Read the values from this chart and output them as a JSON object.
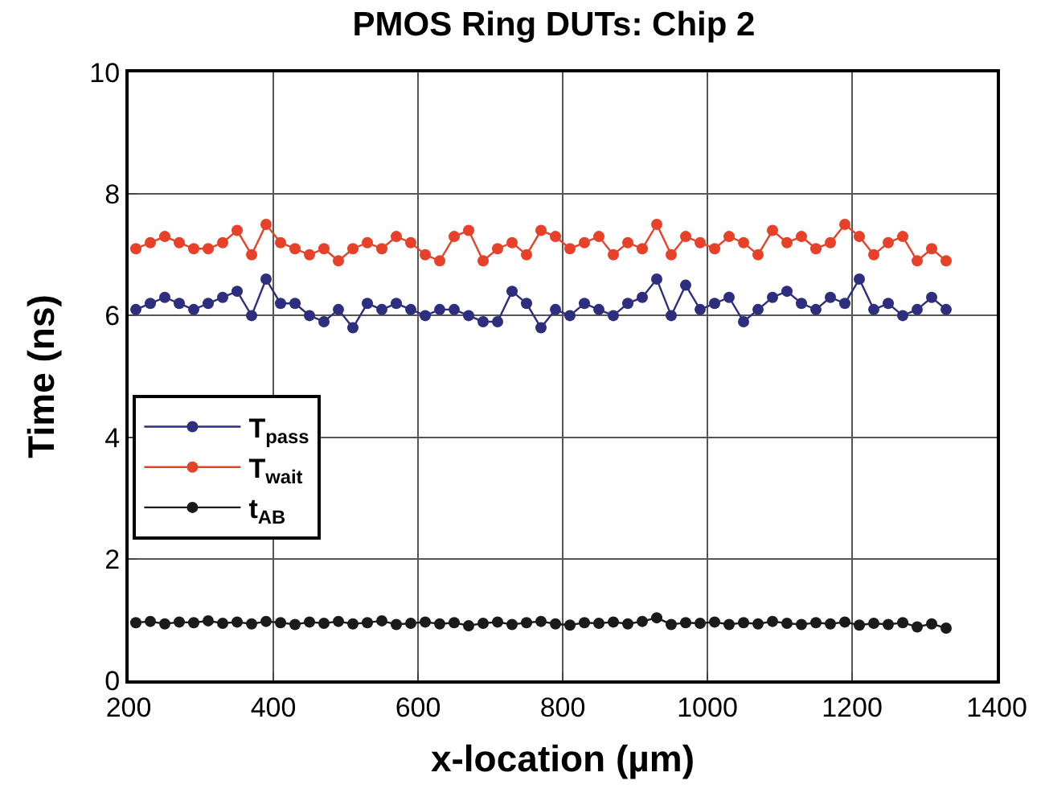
{
  "chart_data": {
    "type": "line",
    "title": "PMOS Ring DUTs: Chip 2",
    "xlabel": "x-location (µm)",
    "ylabel": "Time (ns)",
    "x": [
      210,
      230,
      250,
      270,
      290,
      310,
      330,
      350,
      370,
      390,
      410,
      430,
      450,
      470,
      490,
      510,
      530,
      550,
      570,
      590,
      610,
      630,
      650,
      670,
      690,
      710,
      730,
      750,
      770,
      790,
      810,
      830,
      850,
      870,
      890,
      910,
      930,
      950,
      970,
      990,
      1010,
      1030,
      1050,
      1070,
      1090,
      1110,
      1130,
      1150,
      1170,
      1190,
      1210,
      1230,
      1250,
      1270,
      1290,
      1310,
      1330
    ],
    "series": [
      {
        "name": "T$_{pass}$",
        "color": "#2e2e7f",
        "values": [
          6.1,
          6.2,
          6.3,
          6.2,
          6.1,
          6.2,
          6.3,
          6.4,
          6.0,
          6.6,
          6.2,
          6.2,
          6.0,
          5.9,
          6.1,
          5.8,
          6.2,
          6.1,
          6.2,
          6.1,
          6.0,
          6.1,
          6.1,
          6.0,
          5.9,
          5.9,
          6.4,
          6.2,
          5.8,
          6.1,
          6.0,
          6.2,
          6.1,
          6.0,
          6.2,
          6.3,
          6.6,
          6.0,
          6.5,
          6.1,
          6.2,
          6.3,
          5.9,
          6.1,
          6.3,
          6.4,
          6.2,
          6.1,
          6.3,
          6.2,
          6.6,
          6.1,
          6.2,
          6.0,
          6.1,
          6.3,
          6.1
        ]
      },
      {
        "name": "T$_{wait}$",
        "color": "#e8412a",
        "values": [
          7.1,
          7.2,
          7.3,
          7.2,
          7.1,
          7.1,
          7.2,
          7.4,
          7.0,
          7.5,
          7.2,
          7.1,
          7.0,
          7.1,
          6.9,
          7.1,
          7.2,
          7.1,
          7.3,
          7.2,
          7.0,
          6.9,
          7.3,
          7.4,
          6.9,
          7.1,
          7.2,
          7.0,
          7.4,
          7.3,
          7.1,
          7.2,
          7.3,
          7.0,
          7.2,
          7.1,
          7.5,
          7.0,
          7.3,
          7.2,
          7.1,
          7.3,
          7.2,
          7.0,
          7.4,
          7.2,
          7.3,
          7.1,
          7.2,
          7.5,
          7.3,
          7.0,
          7.2,
          7.3,
          6.9,
          7.1,
          6.9
        ]
      },
      {
        "name": "t$_{AB}$",
        "color": "#1a1a1a",
        "values": [
          0.95,
          0.97,
          0.93,
          0.96,
          0.95,
          0.98,
          0.94,
          0.96,
          0.93,
          0.97,
          0.95,
          0.92,
          0.96,
          0.94,
          0.97,
          0.93,
          0.95,
          0.98,
          0.92,
          0.94,
          0.96,
          0.93,
          0.95,
          0.9,
          0.94,
          0.96,
          0.92,
          0.95,
          0.97,
          0.93,
          0.91,
          0.95,
          0.94,
          0.96,
          0.93,
          0.97,
          1.03,
          0.92,
          0.95,
          0.94,
          0.96,
          0.92,
          0.95,
          0.93,
          0.97,
          0.94,
          0.92,
          0.95,
          0.93,
          0.96,
          0.91,
          0.94,
          0.92,
          0.95,
          0.88,
          0.93,
          0.86
        ]
      }
    ],
    "xlim": [
      200,
      1400
    ],
    "xticks": [
      200,
      400,
      600,
      800,
      1000,
      1200,
      1400
    ],
    "ylim": [
      0,
      10
    ],
    "yticks": [
      0,
      2,
      4,
      6,
      8,
      10
    ],
    "grid": true,
    "legend": "left",
    "marker": "circle",
    "line_style": "solid"
  }
}
